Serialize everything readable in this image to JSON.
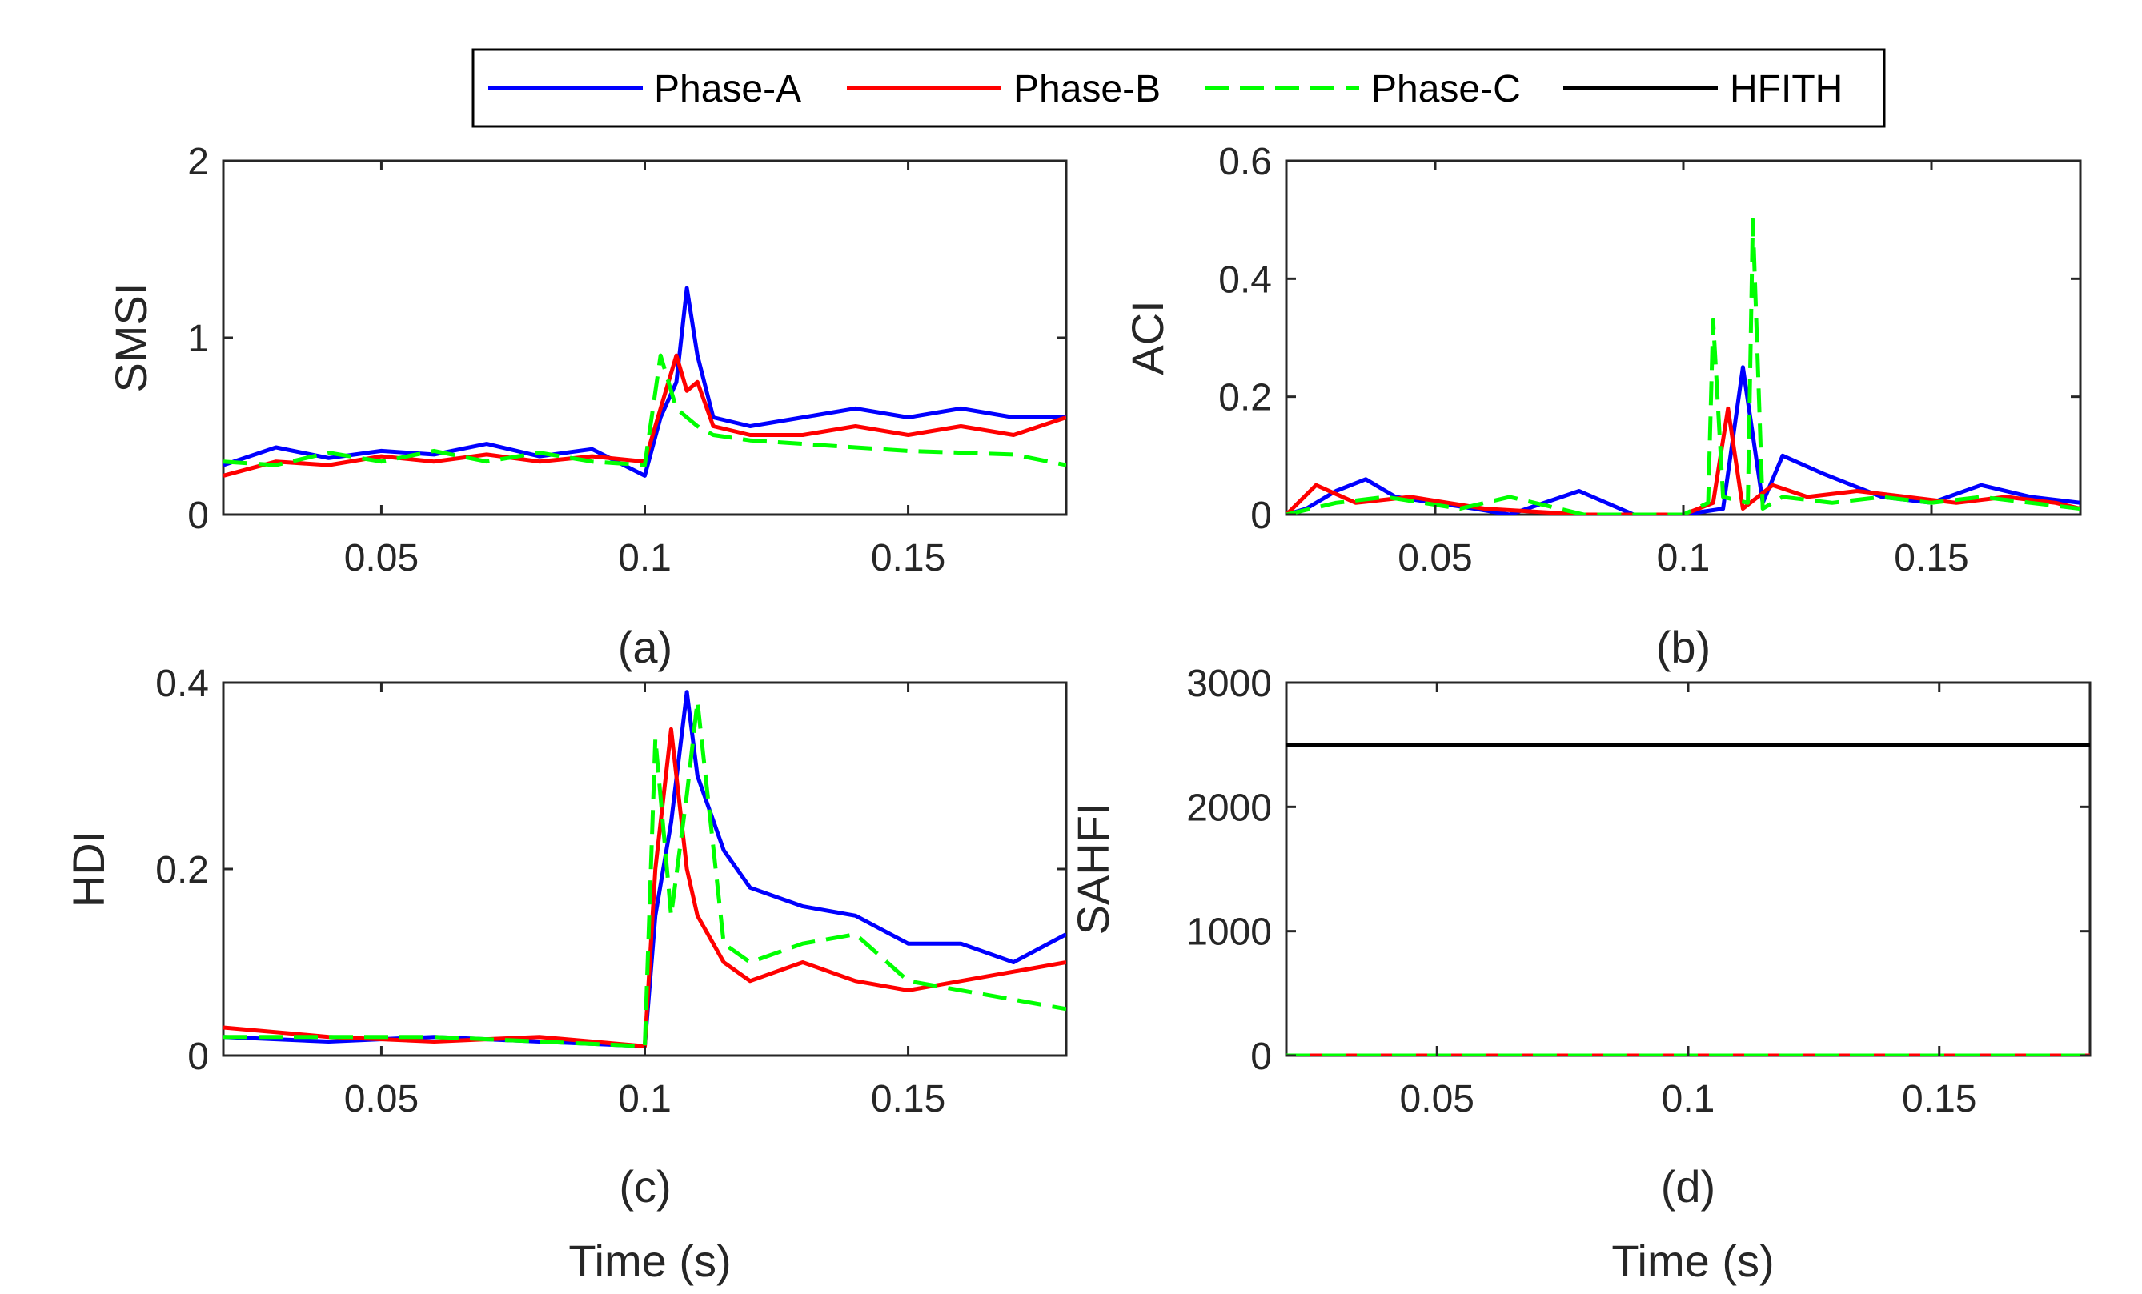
{
  "legend": {
    "entries": [
      {
        "label": "Phase-A",
        "color": "#0000ff",
        "dash": "solid"
      },
      {
        "label": "Phase-B",
        "color": "#ff0000",
        "dash": "solid"
      },
      {
        "label": "Phase-C",
        "color": "#00ff00",
        "dash": "dashed"
      },
      {
        "label": "HFITH",
        "color": "#000000",
        "dash": "solid"
      }
    ]
  },
  "chart_data": [
    {
      "type": "line",
      "subplot_label": "(a)",
      "ylabel": "SMSI",
      "xlabel": "",
      "xlim": [
        0.02,
        0.18
      ],
      "ylim": [
        0,
        2
      ],
      "xticks": [
        "0.05",
        "0.1",
        "0.15"
      ],
      "xtick_values": [
        0.05,
        0.1,
        0.15
      ],
      "yticks": [
        "0",
        "1",
        "2"
      ],
      "ytick_values": [
        0,
        1,
        2
      ],
      "x": [
        0.02,
        0.03,
        0.04,
        0.05,
        0.06,
        0.07,
        0.08,
        0.09,
        0.1,
        0.103,
        0.106,
        0.108,
        0.11,
        0.113,
        0.12,
        0.13,
        0.14,
        0.15,
        0.16,
        0.17,
        0.18
      ],
      "series": [
        {
          "name": "Phase-A",
          "values": [
            0.28,
            0.38,
            0.32,
            0.36,
            0.34,
            0.4,
            0.33,
            0.37,
            0.22,
            0.55,
            0.75,
            1.28,
            0.9,
            0.55,
            0.5,
            0.55,
            0.6,
            0.55,
            0.6,
            0.55,
            0.55
          ]
        },
        {
          "name": "Phase-B",
          "values": [
            0.22,
            0.3,
            0.28,
            0.33,
            0.3,
            0.34,
            0.3,
            0.33,
            0.3,
            0.6,
            0.9,
            0.7,
            0.75,
            0.5,
            0.45,
            0.45,
            0.5,
            0.45,
            0.5,
            0.45,
            0.55
          ]
        },
        {
          "name": "Phase-C",
          "values": [
            0.3,
            0.28,
            0.35,
            0.3,
            0.36,
            0.3,
            0.35,
            0.3,
            0.28,
            0.9,
            0.6,
            0.55,
            0.5,
            0.45,
            0.42,
            0.4,
            0.38,
            0.36,
            0.35,
            0.34,
            0.28
          ]
        }
      ]
    },
    {
      "type": "line",
      "subplot_label": "(b)",
      "ylabel": "ACI",
      "xlabel": "",
      "xlim": [
        0.02,
        0.18
      ],
      "ylim": [
        0,
        0.6
      ],
      "xticks": [
        "0.05",
        "0.1",
        "0.15"
      ],
      "xtick_values": [
        0.05,
        0.1,
        0.15
      ],
      "yticks": [
        "0",
        "0.2",
        "0.4",
        "0.6"
      ],
      "ytick_values": [
        0,
        0.2,
        0.4,
        0.6
      ],
      "series": [
        {
          "name": "Phase-A",
          "x": [
            0.02,
            0.024,
            0.03,
            0.036,
            0.042,
            0.05,
            0.058,
            0.065,
            0.079,
            0.09,
            0.1,
            0.108,
            0.112,
            0.116,
            0.12,
            0.128,
            0.14,
            0.15,
            0.16,
            0.17,
            0.18
          ],
          "values": [
            0,
            0.01,
            0.04,
            0.06,
            0.03,
            0.02,
            0.01,
            0.0,
            0.04,
            0.0,
            0.0,
            0.01,
            0.25,
            0.02,
            0.1,
            0.07,
            0.03,
            0.02,
            0.05,
            0.03,
            0.02
          ]
        },
        {
          "name": "Phase-B",
          "x": [
            0.02,
            0.026,
            0.034,
            0.045,
            0.06,
            0.08,
            0.1,
            0.106,
            0.109,
            0.112,
            0.118,
            0.125,
            0.135,
            0.145,
            0.155,
            0.165,
            0.175,
            0.18
          ],
          "values": [
            0,
            0.05,
            0.02,
            0.03,
            0.01,
            0.0,
            0.0,
            0.02,
            0.18,
            0.01,
            0.05,
            0.03,
            0.04,
            0.03,
            0.02,
            0.03,
            0.02,
            0.01
          ]
        },
        {
          "name": "Phase-C",
          "x": [
            0.02,
            0.03,
            0.04,
            0.055,
            0.065,
            0.08,
            0.1,
            0.105,
            0.106,
            0.108,
            0.113,
            0.114,
            0.116,
            0.12,
            0.13,
            0.14,
            0.15,
            0.16,
            0.17,
            0.18
          ],
          "values": [
            0,
            0.02,
            0.03,
            0.01,
            0.03,
            0.0,
            0.0,
            0.02,
            0.33,
            0.03,
            0.02,
            0.5,
            0.01,
            0.03,
            0.02,
            0.03,
            0.02,
            0.03,
            0.02,
            0.01
          ]
        }
      ]
    },
    {
      "type": "line",
      "subplot_label": "(c)",
      "ylabel": "HDI",
      "xlabel": "Time (s)",
      "xlim": [
        0.02,
        0.18
      ],
      "ylim": [
        0,
        0.4
      ],
      "xticks": [
        "0.05",
        "0.1",
        "0.15"
      ],
      "xtick_values": [
        0.05,
        0.1,
        0.15
      ],
      "yticks": [
        "0",
        "0.2",
        "0.4"
      ],
      "ytick_values": [
        0,
        0.2,
        0.4
      ],
      "x": [
        0.02,
        0.04,
        0.06,
        0.08,
        0.1,
        0.102,
        0.105,
        0.108,
        0.11,
        0.115,
        0.12,
        0.13,
        0.14,
        0.15,
        0.16,
        0.17,
        0.18
      ],
      "series": [
        {
          "name": "Phase-A",
          "values": [
            0.02,
            0.015,
            0.02,
            0.015,
            0.01,
            0.15,
            0.25,
            0.39,
            0.3,
            0.22,
            0.18,
            0.16,
            0.15,
            0.12,
            0.12,
            0.1,
            0.13
          ]
        },
        {
          "name": "Phase-B",
          "values": [
            0.03,
            0.02,
            0.015,
            0.02,
            0.01,
            0.2,
            0.35,
            0.2,
            0.15,
            0.1,
            0.08,
            0.1,
            0.08,
            0.07,
            0.08,
            0.09,
            0.1
          ]
        },
        {
          "name": "Phase-C",
          "values": [
            0.02,
            0.02,
            0.02,
            0.015,
            0.01,
            0.34,
            0.15,
            0.28,
            0.38,
            0.12,
            0.1,
            0.12,
            0.13,
            0.08,
            0.07,
            0.06,
            0.05
          ]
        }
      ]
    },
    {
      "type": "line",
      "subplot_label": "(d)",
      "ylabel": "SAHFI",
      "xlabel": "Time (s)",
      "xlim": [
        0.02,
        0.18
      ],
      "ylim": [
        0,
        3000
      ],
      "xticks": [
        "0.05",
        "0.1",
        "0.15"
      ],
      "xtick_values": [
        0.05,
        0.1,
        0.15
      ],
      "yticks": [
        "0",
        "1000",
        "2000",
        "3000"
      ],
      "ytick_values": [
        0,
        1000,
        2000,
        3000
      ],
      "x": [
        0.02,
        0.18
      ],
      "series": [
        {
          "name": "HFITH",
          "values": [
            2500,
            2500
          ]
        },
        {
          "name": "Phase-A",
          "values": [
            0,
            0
          ]
        },
        {
          "name": "Phase-B",
          "values": [
            0,
            0
          ]
        },
        {
          "name": "Phase-C",
          "values": [
            0,
            0
          ]
        }
      ]
    }
  ]
}
